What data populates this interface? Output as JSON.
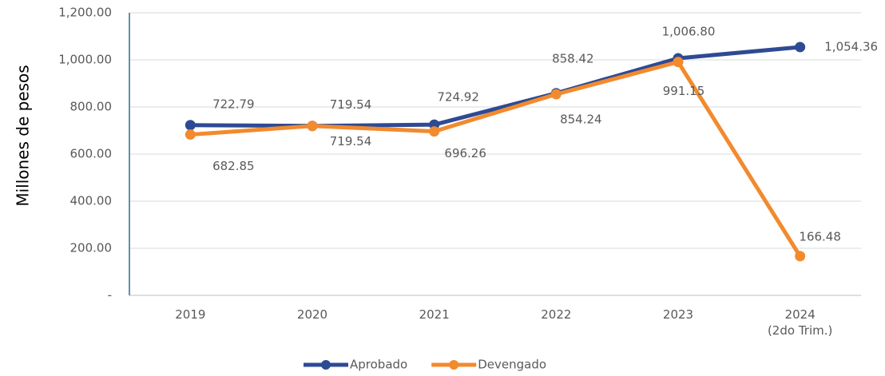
{
  "chart_data": {
    "type": "line",
    "y_label": "Millones de pesos",
    "categories": [
      "2019",
      "2020",
      "2021",
      "2022",
      "2023",
      "2024\n(2do Trim.)"
    ],
    "series": [
      {
        "name": "Aprobado",
        "color": "#2e4a94",
        "values": [
          722.79,
          719.54,
          724.92,
          858.42,
          1006.8,
          1054.36
        ],
        "value_labels": [
          "722.79",
          "719.54",
          "724.92",
          "858.42",
          "1,006.80",
          "1,054.36"
        ]
      },
      {
        "name": "Devengado",
        "color": "#f28a2e",
        "values": [
          682.85,
          719.54,
          696.26,
          854.24,
          991.15,
          166.48
        ],
        "value_labels": [
          "682.85",
          "719.54",
          "696.26",
          "854.24",
          "991.15",
          "166.48"
        ]
      }
    ],
    "ylim": [
      0,
      1200
    ],
    "yticks": [
      {
        "value": 0,
        "label": "-"
      },
      {
        "value": 200,
        "label": "200.00"
      },
      {
        "value": 400,
        "label": "400.00"
      },
      {
        "value": 600,
        "label": "600.00"
      },
      {
        "value": 800,
        "label": "800.00"
      },
      {
        "value": 1000,
        "label": "1,000.00"
      },
      {
        "value": 1200,
        "label": "1,200.00"
      }
    ],
    "grid": true,
    "legend": "bottom"
  }
}
